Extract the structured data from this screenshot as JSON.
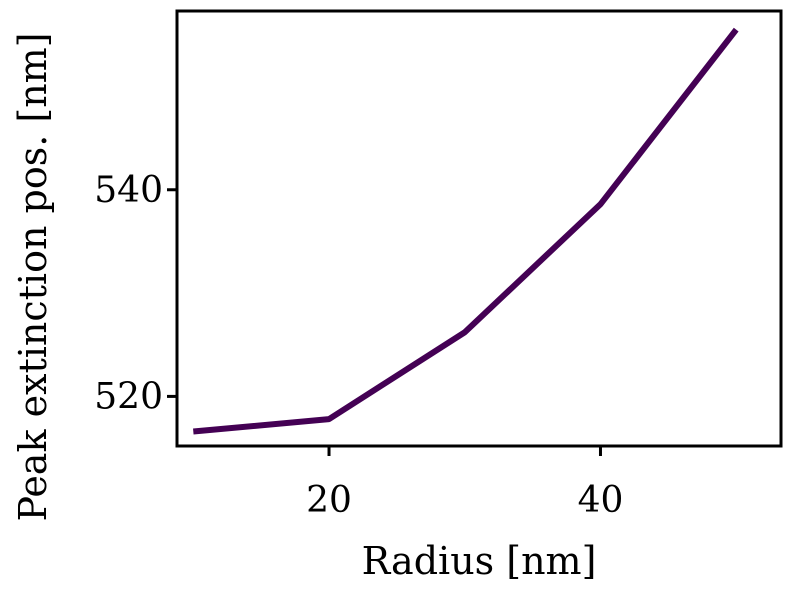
{
  "chart_data": {
    "type": "line",
    "xlabel": "Radius [nm]",
    "ylabel": "Peak extinction pos. [nm]",
    "xlim": [
      8.8,
      53.3
    ],
    "ylim": [
      515.2,
      557.3
    ],
    "xticks": [
      20,
      40
    ],
    "yticks": [
      520,
      540
    ],
    "grid": false,
    "series": [
      {
        "color": "#440154",
        "x": [
          10,
          20,
          30,
          40,
          50
        ],
        "y": [
          516.6,
          517.8,
          526.2,
          538.6,
          555.5
        ]
      }
    ]
  }
}
